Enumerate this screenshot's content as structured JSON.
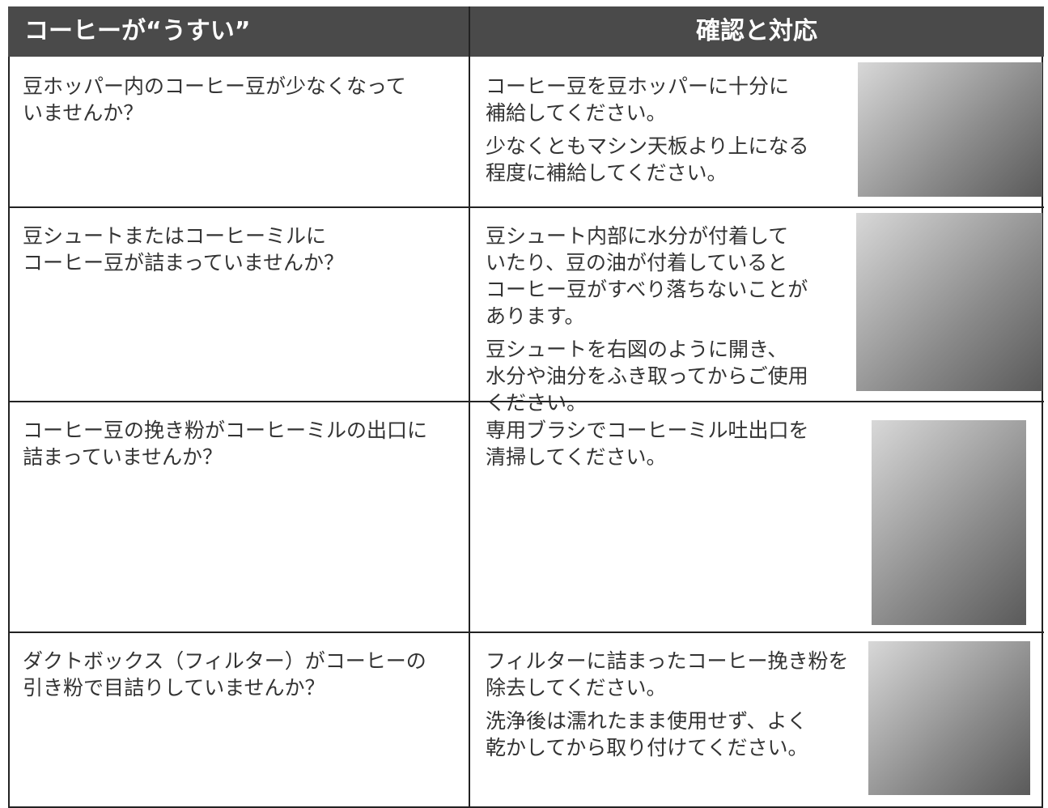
{
  "header": {
    "problem": "コーヒーが“うすい”",
    "solution": "確認と対応"
  },
  "rows": [
    {
      "problem": [
        "豆ホッパー内のコーヒー豆が少なくなって",
        "いませんか？"
      ],
      "solution": [
        [
          "コーヒー豆を豆ホッパーに十分に",
          "補給してください。"
        ],
        [
          "少なくともマシン天板より上になる",
          "程度に補給してください。"
        ]
      ]
    },
    {
      "problem": [
        "豆シュートまたはコーヒーミルに",
        "コーヒー豆が詰まっていませんか？"
      ],
      "solution": [
        [
          "豆シュート内部に水分が付着して",
          "いたり、豆の油が付着していると",
          "コーヒー豆がすべり落ちないことが",
          "あります。"
        ],
        [
          "豆シュートを右図のように開き、",
          "水分や油分をふき取ってからご使用",
          "ください。"
        ]
      ]
    },
    {
      "problem": [
        "コーヒー豆の挽き粉がコーヒーミルの出口に",
        "詰まっていませんか？"
      ],
      "solution": [
        [
          "専用ブラシでコーヒーミル吐出口を",
          "清掃してください。"
        ]
      ]
    },
    {
      "problem": [
        "ダクトボックス（フィルター）がコーヒーの",
        "引き粉で目詰りしていませんか？"
      ],
      "solution": [
        [
          "フィルターに詰まったコーヒー挽き粉を",
          "除去してください。"
        ],
        [
          "洗浄後は濡れたまま使用せず、よく",
          "乾かしてから取り付けてください。"
        ]
      ]
    }
  ]
}
